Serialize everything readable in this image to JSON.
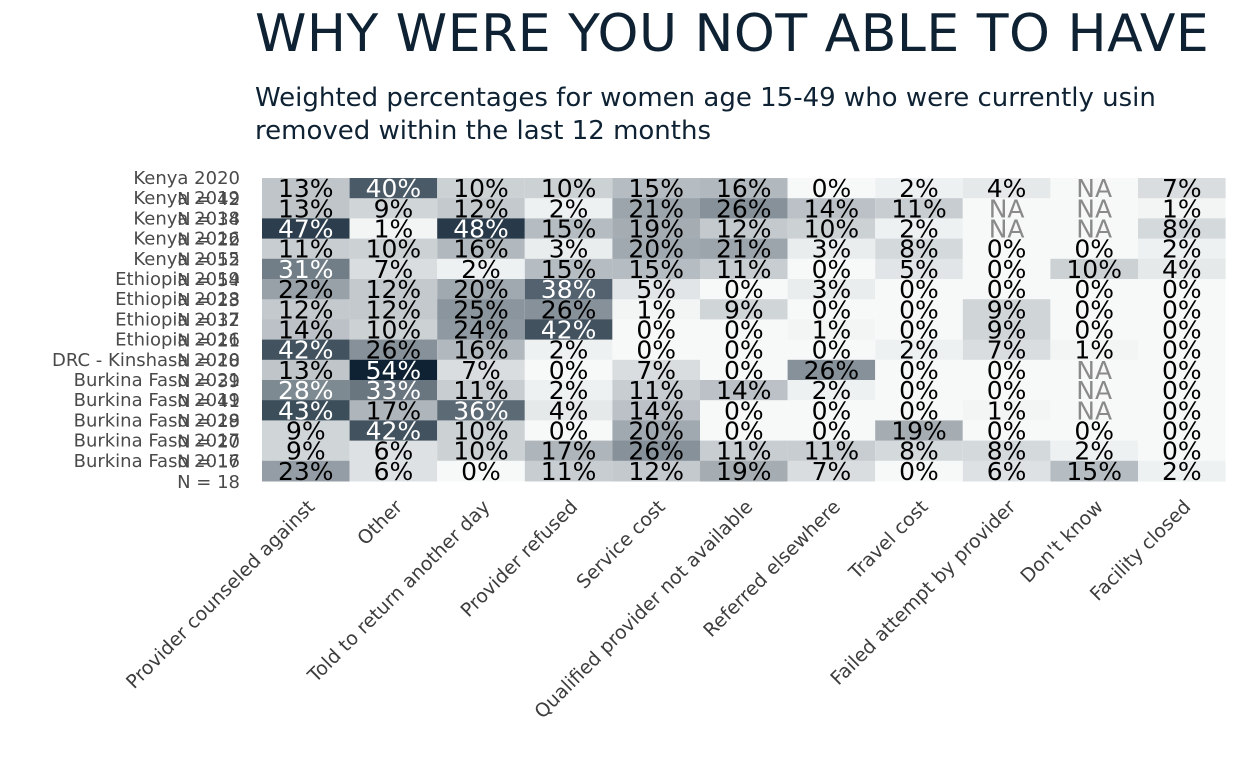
{
  "title": "WHY WERE YOU NOT ABLE TO HAVE",
  "subtitle_lines": [
    "Weighted percentages for women age 15-49 who were currently usin",
    "removed within the last 12 months"
  ],
  "colors": {
    "text": "#0e2233",
    "scale_low": "#f7f9f9",
    "scale_high": "#0e2233",
    "na_text": "#8a8a8a"
  },
  "chart_data": {
    "type": "heatmap",
    "title": "WHY WERE YOU NOT ABLE TO HAVE",
    "columns": [
      "Provider counseled against",
      "Other",
      "Told to return another day",
      "Provider refused",
      "Service cost",
      "Qualified provider not available",
      "Referred elsewhere",
      "Travel cost",
      "Failed attempt by provider",
      "Don't know",
      "Facility closed"
    ],
    "rows": [
      {
        "label": "Kenya 2020",
        "n": "N = 42",
        "values": [
          13,
          40,
          10,
          10,
          15,
          16,
          0,
          2,
          4,
          null,
          7
        ]
      },
      {
        "label": "Kenya 2019",
        "n": "N = 34",
        "values": [
          13,
          9,
          12,
          2,
          21,
          26,
          14,
          11,
          null,
          null,
          1
        ]
      },
      {
        "label": "Kenya 2018",
        "n": "N = 22",
        "values": [
          47,
          1,
          48,
          15,
          19,
          12,
          10,
          2,
          null,
          null,
          8
        ]
      },
      {
        "label": "Kenya 2016",
        "n": "N = 52",
        "values": [
          11,
          10,
          16,
          3,
          20,
          21,
          3,
          8,
          0,
          0,
          2
        ]
      },
      {
        "label": "Kenya 2015",
        "n": "N = 54",
        "values": [
          31,
          7,
          2,
          15,
          15,
          11,
          0,
          5,
          0,
          10,
          4
        ]
      },
      {
        "label": "Ethiopia 2019",
        "n": "N = 23",
        "values": [
          22,
          12,
          20,
          38,
          5,
          0,
          3,
          0,
          0,
          0,
          0
        ]
      },
      {
        "label": "Ethiopia 2018",
        "n": "N = 32",
        "values": [
          12,
          12,
          25,
          26,
          1,
          9,
          0,
          0,
          9,
          0,
          0
        ]
      },
      {
        "label": "Ethiopia 2017",
        "n": "N = 21",
        "values": [
          14,
          10,
          24,
          42,
          0,
          0,
          1,
          0,
          9,
          0,
          0
        ]
      },
      {
        "label": "Ethiopia 2016",
        "n": "N = 18",
        "values": [
          42,
          26,
          16,
          2,
          0,
          0,
          0,
          2,
          7,
          1,
          0
        ]
      },
      {
        "label": "DRC - Kinshasa 2020",
        "n": "N = 39",
        "values": [
          13,
          54,
          7,
          0,
          7,
          0,
          26,
          0,
          0,
          null,
          0
        ]
      },
      {
        "label": "Burkina Faso 2021",
        "n": "N = 41",
        "values": [
          28,
          33,
          11,
          2,
          11,
          14,
          2,
          0,
          0,
          null,
          0
        ]
      },
      {
        "label": "Burkina Faso 2019",
        "n": "N = 29",
        "values": [
          43,
          17,
          36,
          4,
          14,
          0,
          0,
          0,
          1,
          null,
          0
        ]
      },
      {
        "label": "Burkina Faso 2018",
        "n": "N = 20",
        "values": [
          9,
          42,
          10,
          0,
          20,
          0,
          0,
          19,
          0,
          0,
          0
        ]
      },
      {
        "label": "Burkina Faso 2017",
        "n": "N = 17",
        "values": [
          9,
          6,
          10,
          17,
          26,
          11,
          11,
          8,
          8,
          2,
          0
        ]
      },
      {
        "label": "Burkina Faso 2016",
        "n": "N = 18",
        "values": [
          23,
          6,
          0,
          11,
          12,
          19,
          7,
          0,
          6,
          15,
          2
        ]
      }
    ],
    "trailing_n_label": "N = 20",
    "value_suffix": "%",
    "na_label": "NA",
    "value_range": [
      0,
      54
    ]
  }
}
